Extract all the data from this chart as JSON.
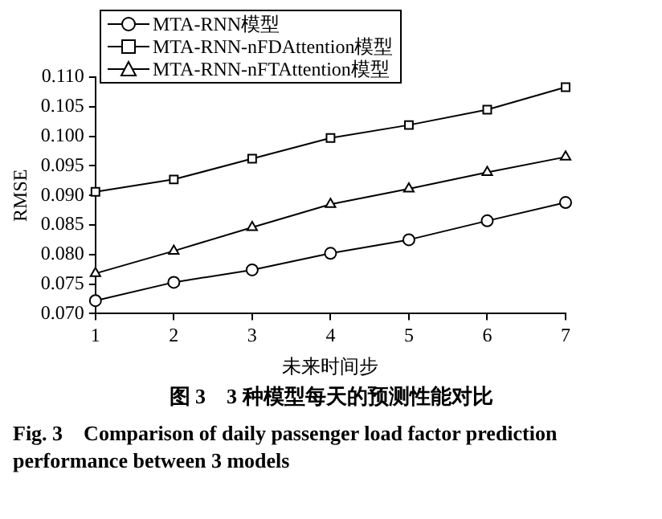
{
  "chart_data": {
    "type": "line",
    "xlabel": "未来时间步",
    "ylabel": "RMSE",
    "x": [
      1,
      2,
      3,
      4,
      5,
      6,
      7
    ],
    "xlim": [
      1,
      7
    ],
    "xticks": [
      1,
      2,
      3,
      4,
      5,
      6,
      7
    ],
    "ylim": [
      0.07,
      0.11
    ],
    "yticks": [
      {
        "value": 0.07,
        "label": "0.070"
      },
      {
        "value": 0.075,
        "label": "0.075"
      },
      {
        "value": 0.08,
        "label": "0.080"
      },
      {
        "value": 0.085,
        "label": "0.085"
      },
      {
        "value": 0.09,
        "label": "0.090"
      },
      {
        "value": 0.095,
        "label": "0.095"
      },
      {
        "value": 0.1,
        "label": "0.100"
      },
      {
        "value": 0.105,
        "label": "0.105"
      },
      {
        "value": 0.11,
        "label": "0.110"
      }
    ],
    "grid": false,
    "legend": "top left",
    "line_style": "solid",
    "series": [
      {
        "name": "MTA-RNN模型",
        "color": "#000000",
        "marker": "circle",
        "values": [
          0.0722,
          0.0753,
          0.0774,
          0.0802,
          0.0825,
          0.0857,
          0.0888
        ]
      },
      {
        "name": "MTA-RNN-nFDAttention模型",
        "color": "#000000",
        "marker": "square",
        "values": [
          0.0906,
          0.0927,
          0.0962,
          0.0997,
          0.1019,
          0.1045,
          0.1083
        ]
      },
      {
        "name": "MTA-RNN-nFTAttention模型",
        "color": "#000000",
        "marker": "triangle",
        "values": [
          0.0768,
          0.0806,
          0.0846,
          0.0885,
          0.0911,
          0.0939,
          0.0965
        ]
      }
    ],
    "annotations": [
      "图 3　3 种模型每天的预测性能对比",
      "Fig. 3　Comparison of daily passenger load factor prediction performance between 3 models"
    ]
  }
}
